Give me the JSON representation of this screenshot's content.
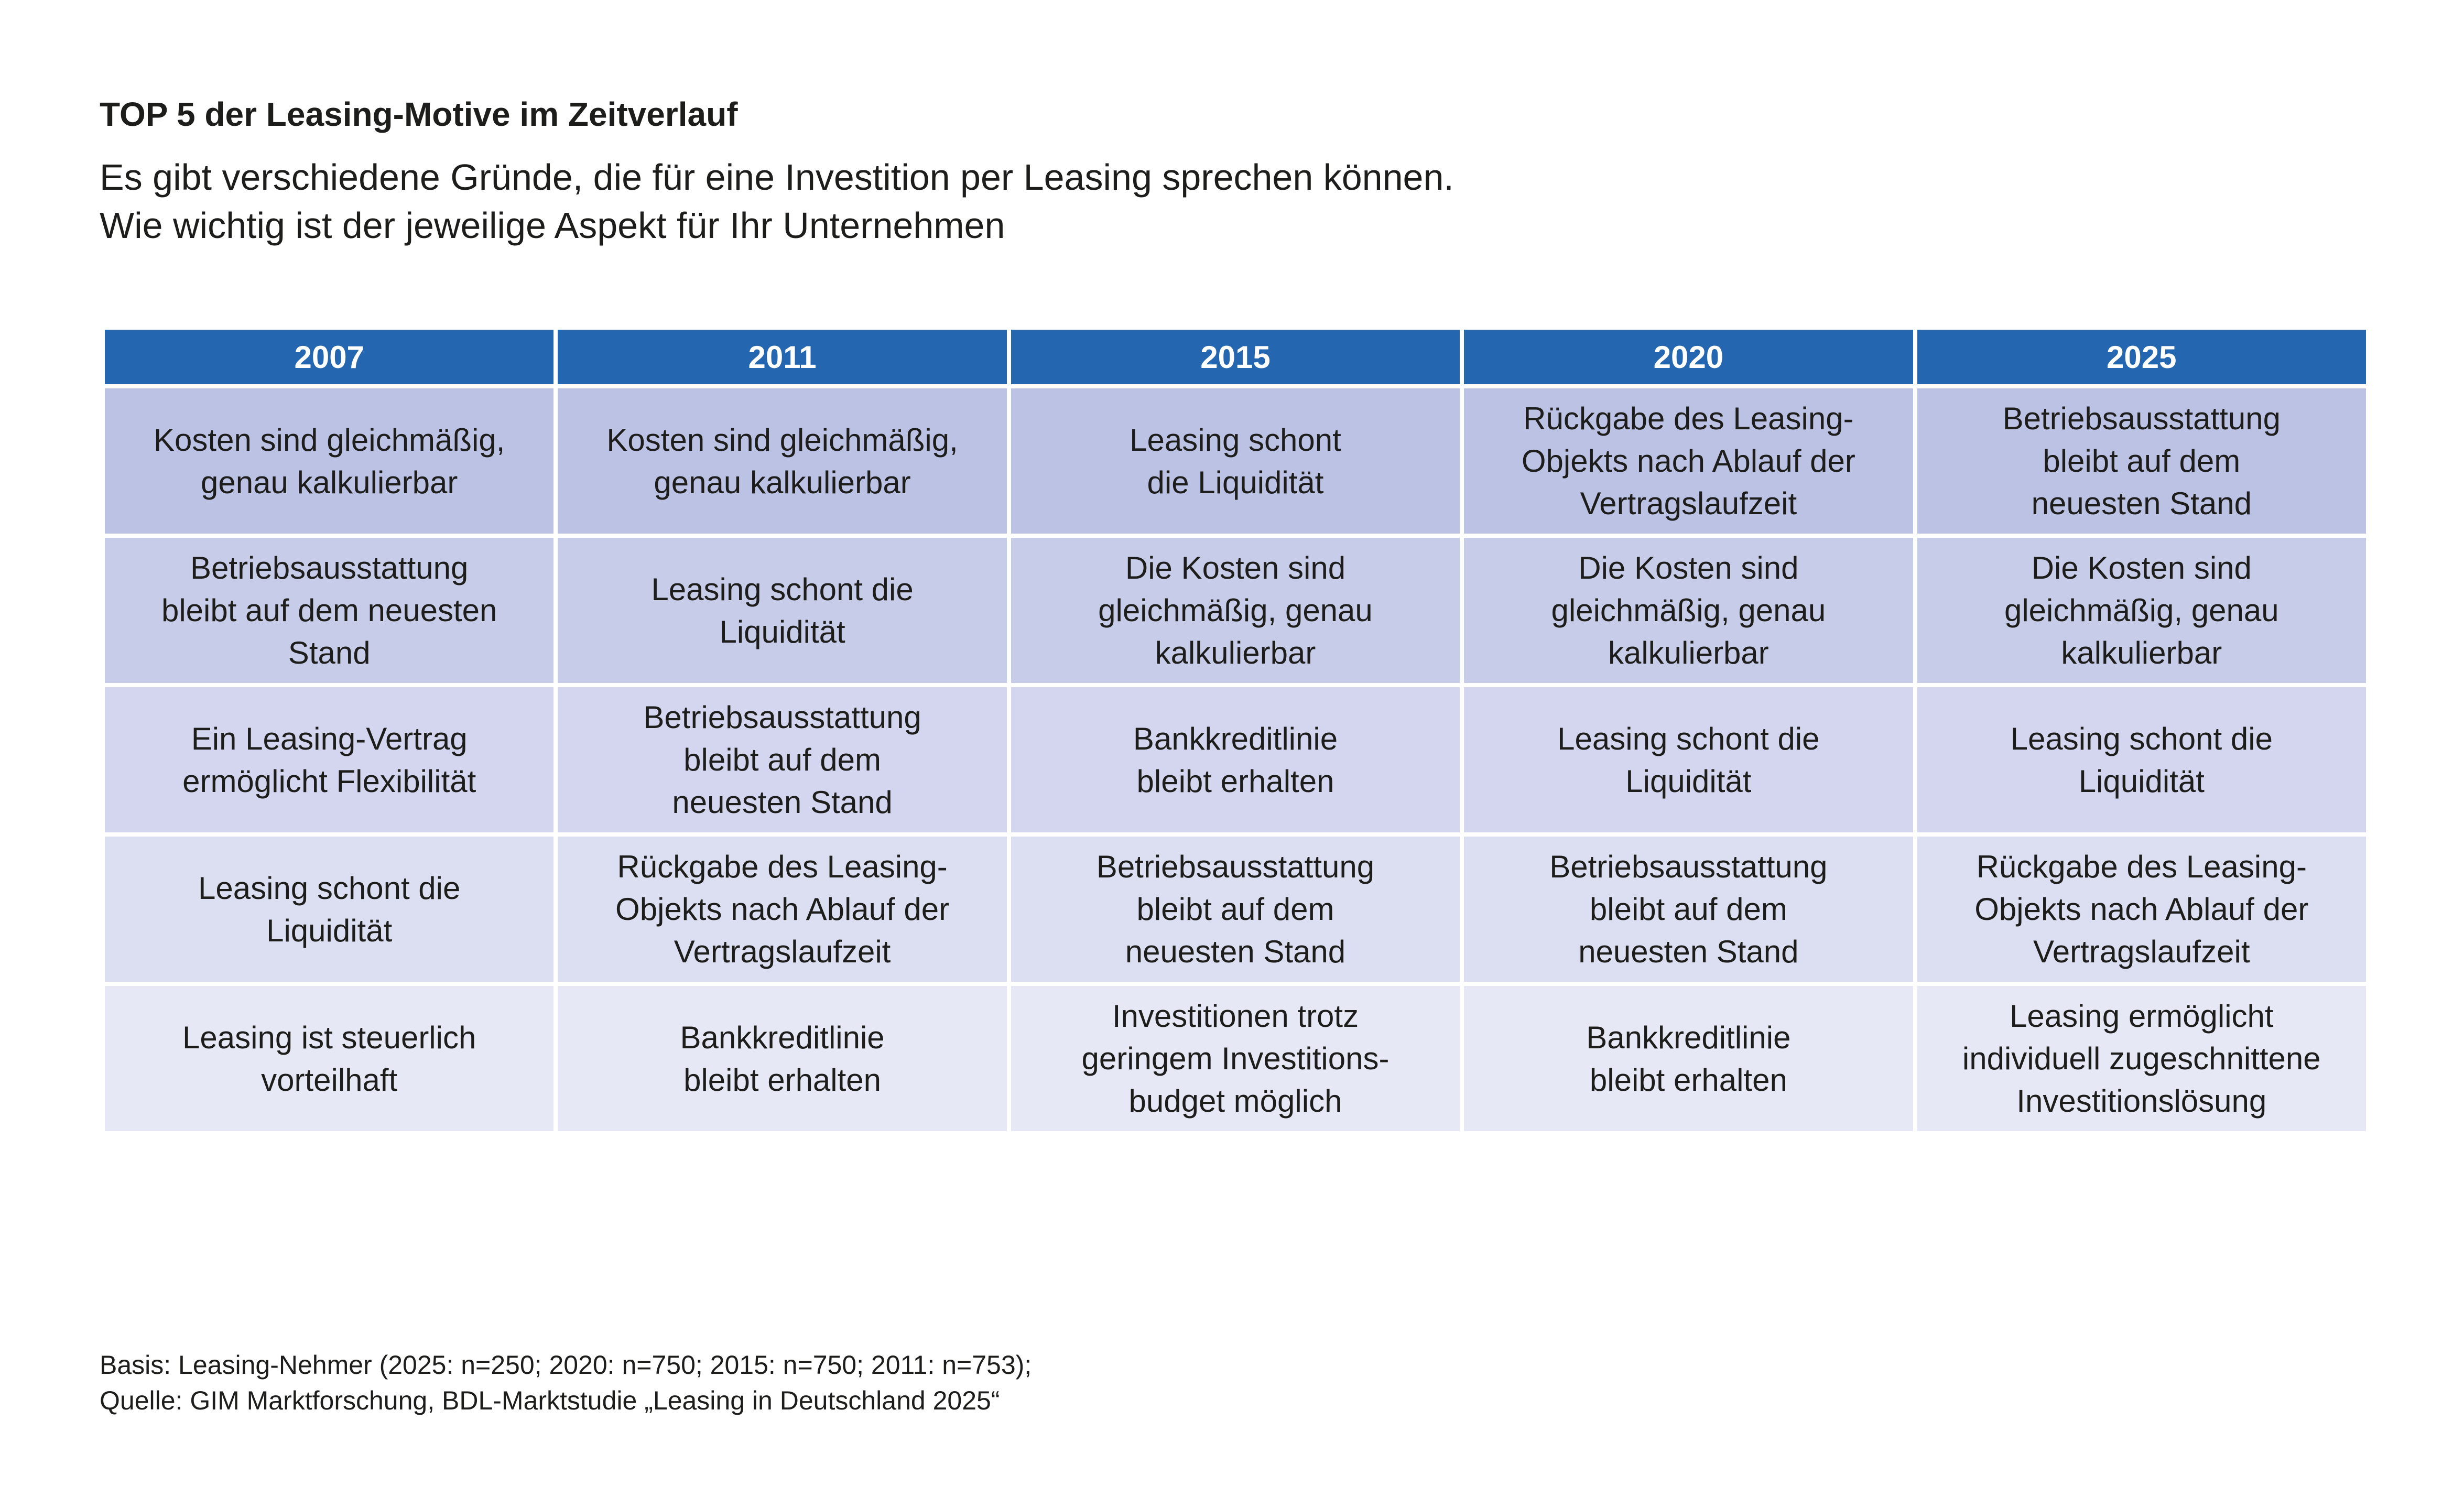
{
  "title": "TOP 5 der Leasing-Motive im Zeitverlauf",
  "subtitle": {
    "line1": "Es gibt verschiedene Gründe, die für eine Investition per Leasing sprechen können.",
    "line2": "Wie wichtig ist der jeweilige Aspekt für Ihr Unternehmen"
  },
  "colors": {
    "header": "#2466b0",
    "rank_backgrounds": [
      "#bcc2e3",
      "#c7cce8",
      "#d3d6ee",
      "#dcdff2",
      "#e6e8f5"
    ]
  },
  "chart_data": {
    "type": "table",
    "columns": [
      "2007",
      "2011",
      "2015",
      "2020",
      "2025"
    ],
    "rows": [
      [
        [
          "Kosten sind gleichmäßig,",
          "genau kalkulierbar"
        ],
        [
          "Kosten sind gleichmäßig,",
          "genau kalkulierbar"
        ],
        [
          "Leasing schont",
          "die Liquidität"
        ],
        [
          "Rückgabe des Leasing-",
          "Objekts nach Ablauf der",
          "Vertragslaufzeit"
        ],
        [
          "Betriebsausstattung",
          "bleibt auf dem",
          "neuesten Stand"
        ]
      ],
      [
        [
          "Betriebsausstattung",
          "bleibt auf dem neuesten",
          "Stand"
        ],
        [
          "Leasing schont die",
          "Liquidität"
        ],
        [
          "Die Kosten sind",
          "gleichmäßig, genau",
          "kalkulierbar"
        ],
        [
          "Die Kosten sind",
          "gleichmäßig, genau",
          "kalkulierbar"
        ],
        [
          "Die Kosten sind",
          "gleichmäßig, genau",
          "kalkulierbar"
        ]
      ],
      [
        [
          "Ein Leasing-Vertrag",
          "ermöglicht Flexibilität"
        ],
        [
          "Betriebsausstattung",
          "bleibt auf dem",
          "neuesten Stand"
        ],
        [
          "Bankkreditlinie",
          "bleibt erhalten"
        ],
        [
          "Leasing schont die",
          "Liquidität"
        ],
        [
          "Leasing schont die",
          "Liquidität"
        ]
      ],
      [
        [
          "Leasing schont die",
          "Liquidität"
        ],
        [
          "Rückgabe des Leasing-",
          "Objekts nach Ablauf der",
          "Vertragslaufzeit"
        ],
        [
          "Betriebsausstattung",
          "bleibt auf dem",
          "neuesten Stand"
        ],
        [
          "Betriebsausstattung",
          "bleibt auf dem",
          "neuesten Stand"
        ],
        [
          "Rückgabe des Leasing-",
          "Objekts nach Ablauf der",
          "Vertragslaufzeit"
        ]
      ],
      [
        [
          "Leasing ist steuerlich",
          "vorteilhaft"
        ],
        [
          "Bankkreditlinie",
          "bleibt erhalten"
        ],
        [
          "Investitionen trotz",
          "geringem Investitions-",
          "budget möglich"
        ],
        [
          "Bankkreditlinie",
          "bleibt erhalten"
        ],
        [
          "Leasing ermöglicht",
          "individuell zugeschnittene",
          "Investitionslösung"
        ]
      ]
    ]
  },
  "footnote": {
    "line1": "Basis: Leasing-Nehmer (2025: n=250; 2020: n=750; 2015: n=750; 2011: n=753);",
    "line2": "Quelle: GIM Marktforschung, BDL-Marktstudie „Leasing in Deutschland 2025“"
  }
}
